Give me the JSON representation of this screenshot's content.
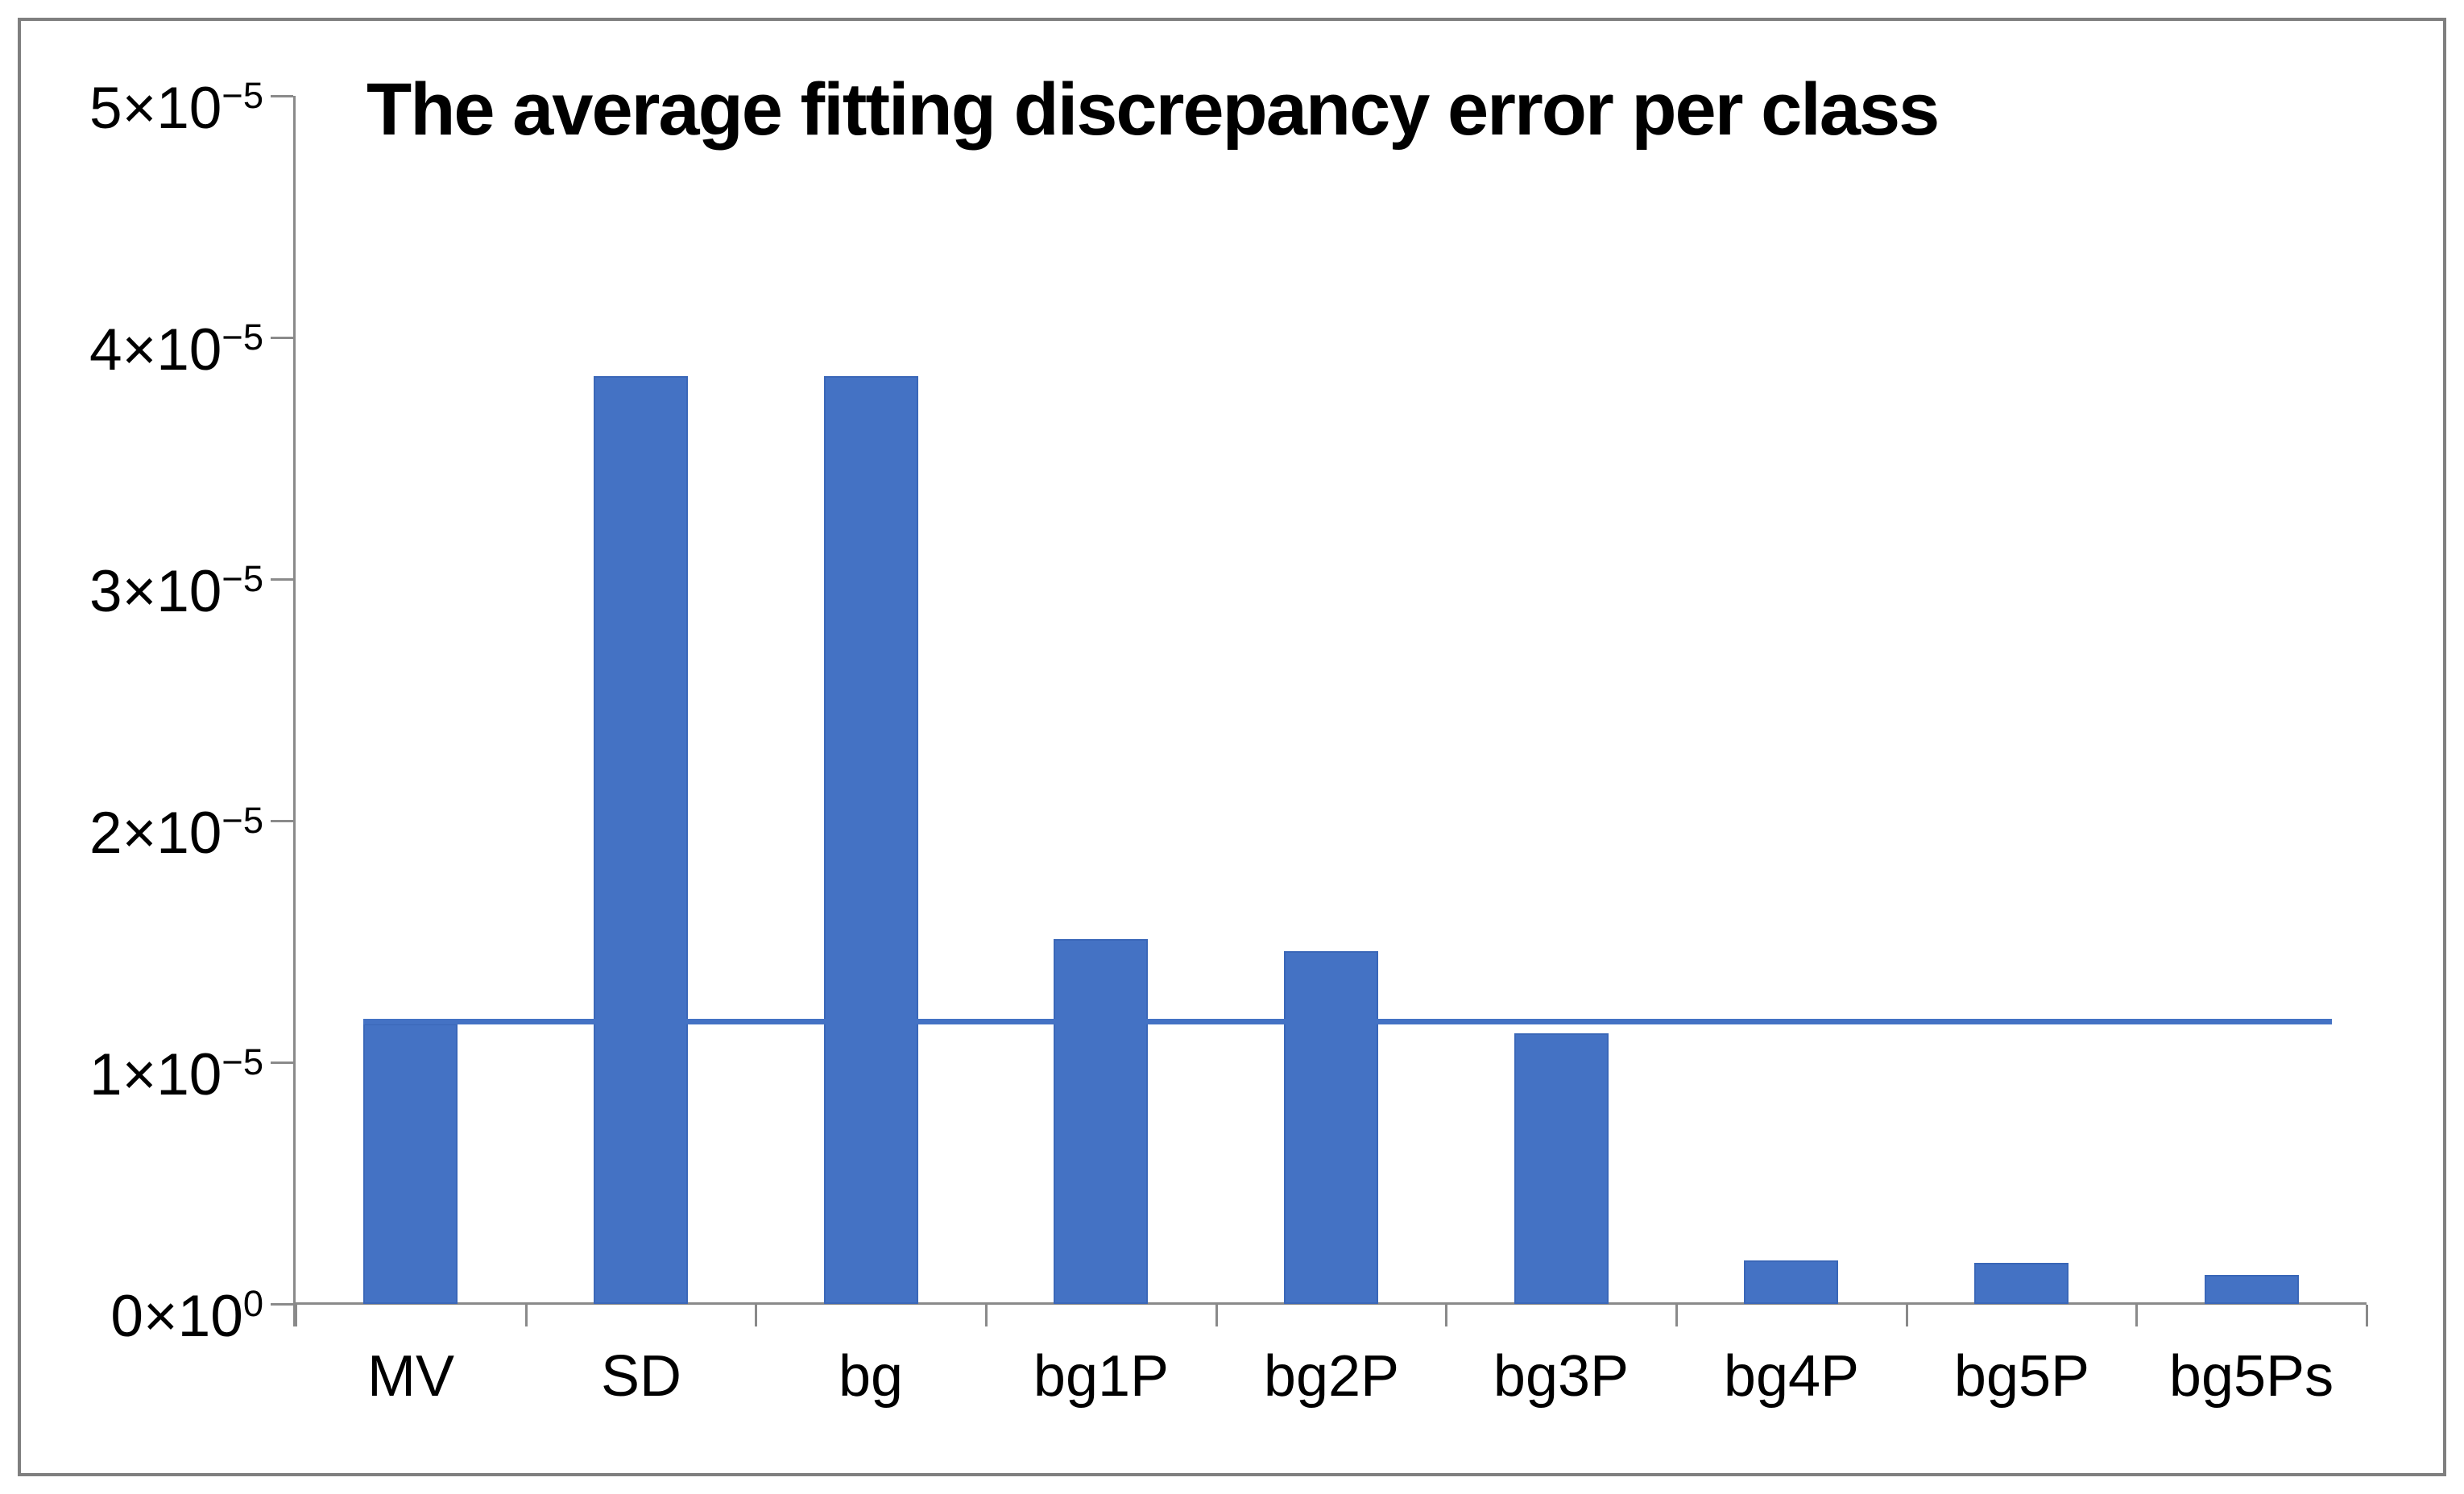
{
  "window": {
    "background_color": "#ffffff",
    "border_color": "#7f7f7f"
  },
  "chart_data": {
    "type": "bar",
    "title": "The average fitting discrepancy error per class",
    "xlabel": "",
    "ylabel": "",
    "grid": "off",
    "legend": "none",
    "categories": [
      "MV",
      "SD",
      "bg",
      "bg1P",
      "bg2P",
      "bg3P",
      "bg4P",
      "bg5P",
      "bg5Ps"
    ],
    "values": [
      1.16e-05,
      3.84e-05,
      3.84e-05,
      1.51e-05,
      1.46e-05,
      1.12e-05,
      1.8e-06,
      1.7e-06,
      1.2e-06
    ],
    "average_line": {
      "value": 1.17e-05
    },
    "ylim": [
      0,
      5e-05
    ],
    "yticks": [
      {
        "value": 0.0,
        "base": "0×10",
        "exp": "0"
      },
      {
        "value": 1e-05,
        "base": "1×10",
        "exp": "−5"
      },
      {
        "value": 2e-05,
        "base": "2×10",
        "exp": "−5"
      },
      {
        "value": 3e-05,
        "base": "3×10",
        "exp": "−5"
      },
      {
        "value": 4e-05,
        "base": "4×10",
        "exp": "−5"
      },
      {
        "value": 5e-05,
        "base": "5×10",
        "exp": "−5"
      }
    ],
    "colors": {
      "bar_fill": "#4472C4",
      "bar_border": "#3A67B8",
      "average_line": "#4472C4",
      "axis": "#8a8a8a",
      "text": "#000000"
    }
  }
}
